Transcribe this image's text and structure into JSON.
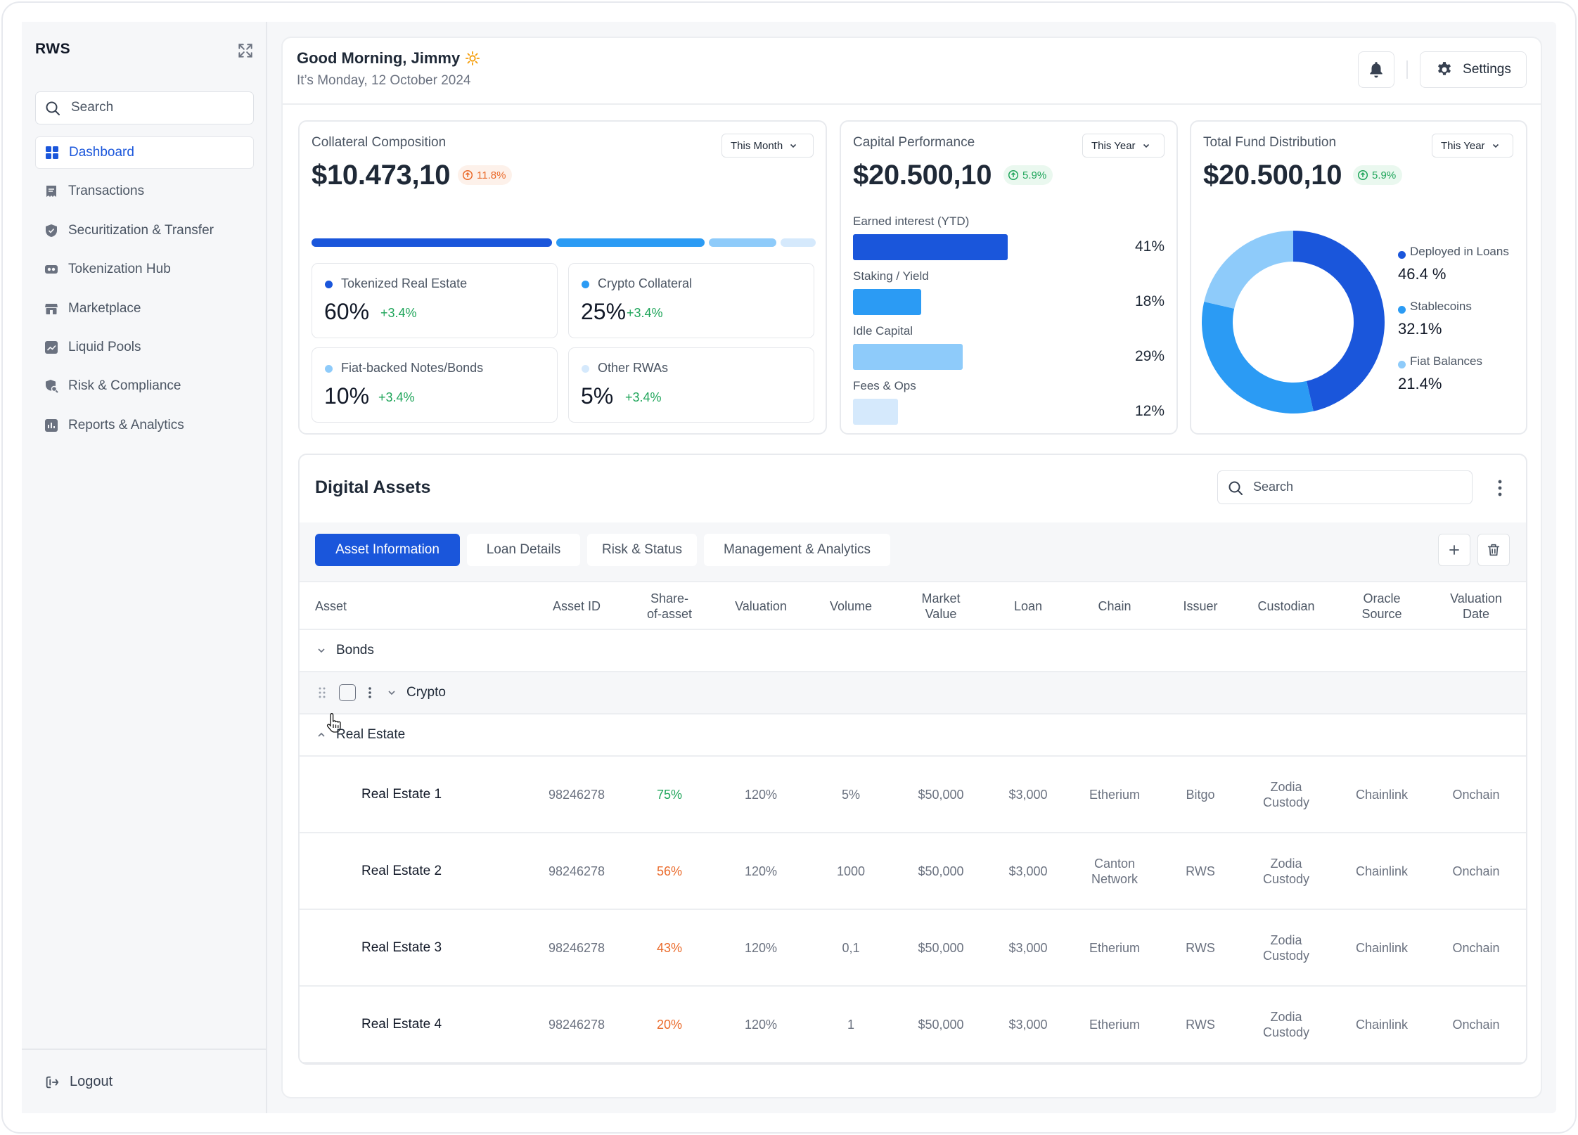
{
  "app": {
    "brand": "RWS"
  },
  "sidebar": {
    "search_placeholder": "Search",
    "items": [
      {
        "label": "Dashboard",
        "icon": "grid-icon",
        "active": true
      },
      {
        "label": "Transactions",
        "icon": "receipt-icon"
      },
      {
        "label": "Securitization & Transfer",
        "icon": "shield-icon"
      },
      {
        "label": "Tokenization Hub",
        "icon": "token-icon"
      },
      {
        "label": "Marketplace",
        "icon": "store-icon"
      },
      {
        "label": "Liquid Pools",
        "icon": "chart-line-icon"
      },
      {
        "label": "Risk & Compliance",
        "icon": "risk-search-icon"
      },
      {
        "label": "Reports & Analytics",
        "icon": "bar-chart-icon"
      }
    ],
    "logout_label": "Logout"
  },
  "header": {
    "greeting": "Good Morning, Jimmy",
    "date": "It’s Monday, 12 October 2024",
    "settings_label": "Settings"
  },
  "collateral": {
    "title": "Collateral Composition",
    "period": "This Month",
    "value": "$10.473,10",
    "change": "11.8%",
    "breakdown": [
      {
        "label": "Tokenized Real Estate",
        "percent": "60%",
        "change": "+3.4%",
        "color": "#1a56db"
      },
      {
        "label": "Crypto Collateral",
        "percent": "25%",
        "change": "+3.4%",
        "color": "#2b9bf4"
      },
      {
        "label": "Fiat-backed Notes/Bonds",
        "percent": "10%",
        "change": "+3.4%",
        "color": "#8ecbfa"
      },
      {
        "label": "Other RWAs",
        "percent": "5%",
        "change": "+3.4%",
        "color": "#d5e9fc"
      }
    ]
  },
  "capital": {
    "title": "Capital Performance",
    "period": "This Year",
    "value": "$20.500,10",
    "change": "5.9%",
    "bars": [
      {
        "label": "Earned interest (YTD)",
        "percent": "41%",
        "fraction": 0.41,
        "color": "#1a56db"
      },
      {
        "label": "Staking / Yield",
        "percent": "18%",
        "fraction": 0.18,
        "color": "#2b9bf4"
      },
      {
        "label": "Idle Capital",
        "percent": "29%",
        "fraction": 0.29,
        "color": "#8ecbfa"
      },
      {
        "label": "Fees & Ops",
        "percent": "12%",
        "fraction": 0.12,
        "color": "#d5e9fc"
      }
    ]
  },
  "fund": {
    "title": "Total Fund Distribution",
    "period": "This Year",
    "value": "$20.500,10",
    "change": "5.9%",
    "slices": [
      {
        "label": "Deployed in Loans",
        "display": "46.4 %",
        "value": 46.4,
        "color": "#1a56db"
      },
      {
        "label": "Stablecoins",
        "display": "32.1%",
        "value": 32.1,
        "color": "#2b9bf4"
      },
      {
        "label": "Fiat Balances",
        "display": "21.4%",
        "value": 21.4,
        "color": "#8ecbfa"
      }
    ]
  },
  "assets": {
    "title": "Digital Assets",
    "search_placeholder": "Search",
    "tabs": [
      "Asset Information",
      "Loan Details",
      "Risk & Status",
      "Management & Analytics"
    ],
    "columns": [
      "Asset",
      "Asset ID",
      "Share-\nof-asset",
      "Valuation",
      "Volume",
      "Market\nValue",
      "Loan",
      "Chain",
      "Issuer",
      "Custodian",
      "Oracle\nSource",
      "Valuation\nDate"
    ],
    "groups": {
      "bonds": "Bonds",
      "crypto": "Crypto",
      "real_estate": "Real Estate"
    },
    "rows": [
      {
        "name": "Real Estate 1",
        "id": "98246278",
        "share": "75%",
        "share_color": "#1fa55a",
        "valuation": "120%",
        "volume": "5%",
        "market": "$50,000",
        "loan": "$3,000",
        "chain": "Etherium",
        "issuer": "Bitgo",
        "custodian": "Zodia\nCustody",
        "oracle": "Chainlink",
        "date": "Onchain"
      },
      {
        "name": "Real Estate 2",
        "id": "98246278",
        "share": "56%",
        "share_color": "#ea6a2a",
        "valuation": "120%",
        "volume": "1000",
        "market": "$50,000",
        "loan": "$3,000",
        "chain": "Canton\nNetwork",
        "issuer": "RWS",
        "custodian": "Zodia\nCustody",
        "oracle": "Chainlink",
        "date": "Onchain"
      },
      {
        "name": "Real Estate 3",
        "id": "98246278",
        "share": "43%",
        "share_color": "#ea6a2a",
        "valuation": "120%",
        "volume": "0,1",
        "market": "$50,000",
        "loan": "$3,000",
        "chain": "Etherium",
        "issuer": "RWS",
        "custodian": "Zodia\nCustody",
        "oracle": "Chainlink",
        "date": "Onchain"
      },
      {
        "name": "Real Estate 4",
        "id": "98246278",
        "share": "20%",
        "share_color": "#ea6a2a",
        "valuation": "120%",
        "volume": "1",
        "market": "$50,000",
        "loan": "$3,000",
        "chain": "Etherium",
        "issuer": "RWS",
        "custodian": "Zodia\nCustody",
        "oracle": "Chainlink",
        "date": "Onchain"
      }
    ]
  }
}
